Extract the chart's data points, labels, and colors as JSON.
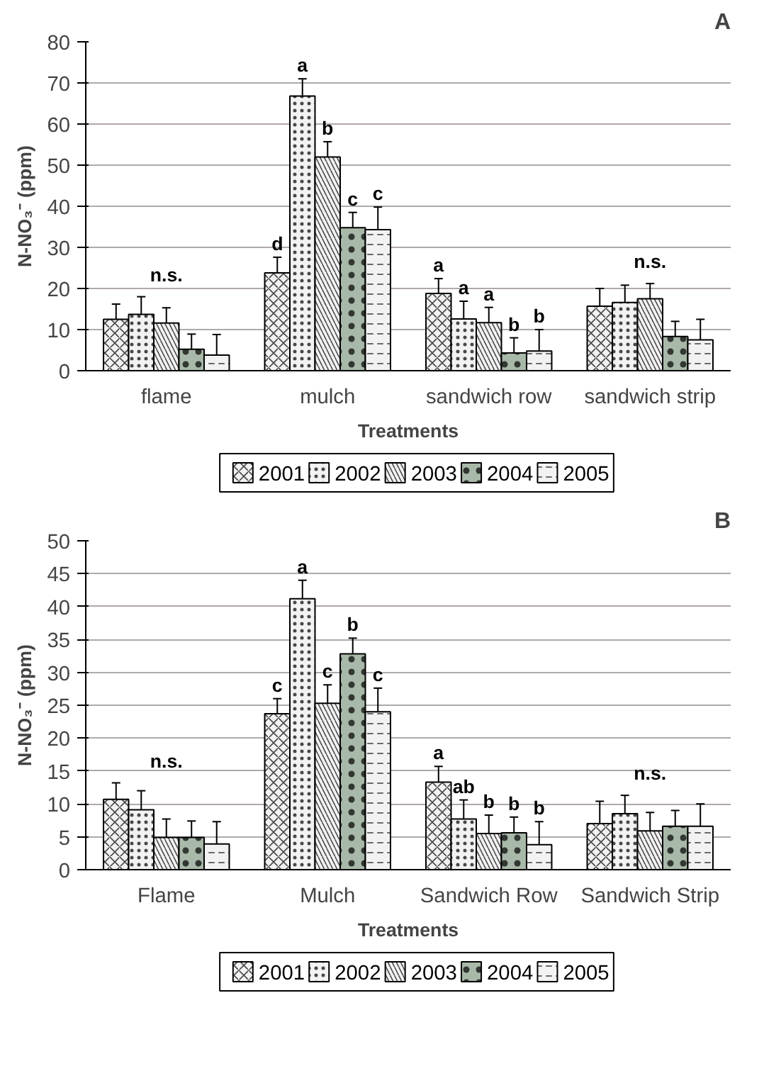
{
  "chart_data": [
    {
      "type": "bar",
      "title": "A",
      "xlabel": "Treatments",
      "ylabel": "N-NO₃⁻ (ppm)",
      "categories": [
        "flame",
        "mulch",
        "sandwich row",
        "sandwich strip"
      ],
      "ylim": [
        0,
        80
      ],
      "yticks": [
        0,
        10,
        20,
        30,
        40,
        50,
        60,
        70,
        80
      ],
      "grid": "y",
      "legend": "bottom",
      "series": [
        {
          "name": "2001",
          "color": "#f2f2f2",
          "values": [
            12.5,
            23.8,
            18.8,
            15.7
          ],
          "errors": [
            3.7,
            3.8,
            3.6,
            4.3
          ],
          "value_labels": [
            null,
            "d",
            "a",
            null
          ]
        },
        {
          "name": "2002",
          "color": "#f2f2f2",
          "values": [
            13.7,
            66.8,
            12.6,
            16.6
          ],
          "errors": [
            4.3,
            4.2,
            4.3,
            4.2
          ],
          "value_labels": [
            null,
            "a",
            "a",
            null
          ]
        },
        {
          "name": "2003",
          "color": "#f2f2f2",
          "values": [
            11.6,
            52,
            11.7,
            17.5
          ],
          "errors": [
            3.7,
            3.7,
            3.7,
            3.7
          ],
          "value_labels": [
            null,
            "b",
            "a",
            null
          ]
        },
        {
          "name": "2004",
          "color": "#a9b9a9",
          "values": [
            5.2,
            34.8,
            4.3,
            8.3
          ],
          "errors": [
            3.7,
            3.7,
            3.7,
            3.7
          ],
          "value_labels": [
            null,
            "c",
            "b",
            null
          ]
        },
        {
          "name": "2005",
          "color": "#f2f2f2",
          "values": [
            3.8,
            34.3,
            4.8,
            7.5
          ],
          "errors": [
            5,
            5.5,
            5.2,
            5
          ],
          "value_labels": [
            null,
            "c",
            "b",
            null
          ]
        }
      ],
      "annotations": [
        "n.s.",
        "n.s."
      ]
    },
    {
      "type": "bar",
      "title": "B",
      "xlabel": "Treatments",
      "ylabel": "N-NO₃⁻ (ppm)",
      "categories": [
        "Flame",
        "Mulch",
        "Sandwich Row",
        "Sandwich Strip"
      ],
      "ylim": [
        0,
        50
      ],
      "yticks": [
        0,
        5,
        10,
        15,
        20,
        25,
        30,
        35,
        40,
        45,
        50
      ],
      "grid": "y",
      "legend": "bottom",
      "series": [
        {
          "name": "2001",
          "color": "#f2f2f2",
          "values": [
            10.7,
            23.7,
            13.3,
            7
          ],
          "errors": [
            2.5,
            2.3,
            2.4,
            3.4
          ],
          "value_labels": [
            null,
            "c",
            "a",
            null
          ]
        },
        {
          "name": "2002",
          "color": "#f2f2f2",
          "values": [
            9.1,
            41.2,
            7.7,
            8.5
          ],
          "errors": [
            2.9,
            2.8,
            2.9,
            2.8
          ],
          "value_labels": [
            null,
            "a",
            "ab",
            null
          ]
        },
        {
          "name": "2003",
          "color": "#f2f2f2",
          "values": [
            4.9,
            25.3,
            5.5,
            5.9
          ],
          "errors": [
            2.8,
            2.8,
            2.8,
            2.8
          ],
          "value_labels": [
            null,
            "c",
            "b",
            null
          ]
        },
        {
          "name": "2004",
          "color": "#a9b9a9",
          "values": [
            4.9,
            32.8,
            5.6,
            6.6
          ],
          "errors": [
            2.5,
            2.4,
            2.4,
            2.4
          ],
          "value_labels": [
            null,
            "b",
            "b",
            null
          ]
        },
        {
          "name": "2005",
          "color": "#f2f2f2",
          "values": [
            3.9,
            24,
            3.8,
            6.6
          ],
          "errors": [
            3.4,
            3.6,
            3.5,
            3.4
          ],
          "value_labels": [
            null,
            "c",
            "b",
            null
          ]
        }
      ],
      "annotations": [
        "n.s.",
        "n.s."
      ]
    }
  ]
}
